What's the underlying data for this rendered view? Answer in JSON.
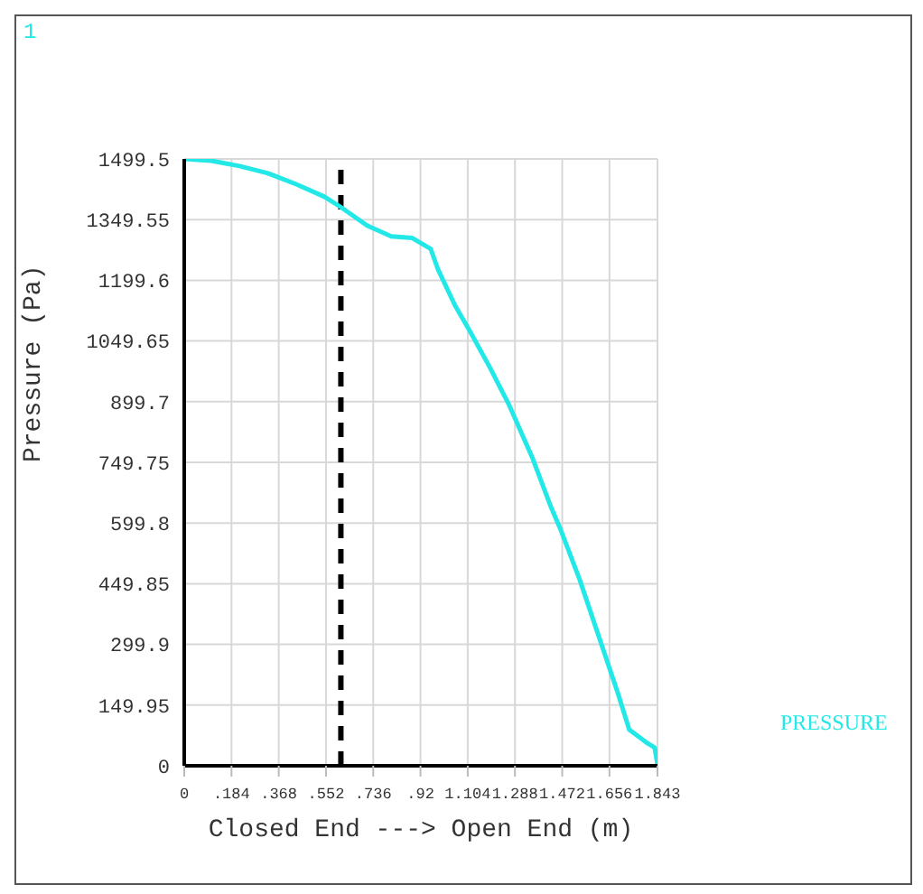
{
  "chart_data": {
    "type": "line",
    "xlabel": "Closed End ---> Open End (m)",
    "ylabel": "Pressure (Pa)",
    "annotations": [
      "1"
    ],
    "xlim": [
      0,
      1.843
    ],
    "xticks": [
      0,
      {
        "value": 0.184,
        "label": ".184"
      },
      {
        "value": 0.368,
        "label": ".368"
      },
      {
        "value": 0.552,
        "label": ".552"
      },
      {
        "value": 0.736,
        "label": ".736"
      },
      {
        "value": 0.92,
        "label": ".92"
      },
      1.104,
      1.288,
      1.472,
      1.656,
      1.843
    ],
    "ylim": [
      0,
      1499.5
    ],
    "yticks": [
      0,
      149.95,
      299.9,
      449.85,
      599.8,
      749.75,
      899.7,
      1049.65,
      1199.6,
      1349.55,
      1499.5
    ],
    "grid": true,
    "legend": "right",
    "marker": "none",
    "line_style": "solid",
    "ref_lines": [
      {
        "axis": "x",
        "value": 0.61,
        "color": "#000000",
        "line_style": "dashed"
      }
    ],
    "series": [
      {
        "name": "PRESSURE",
        "color": "#22e8e8",
        "x": [
          0,
          0.105,
          0.215,
          0.326,
          0.436,
          0.546,
          0.613,
          0.712,
          0.806,
          0.888,
          0.96,
          0.988,
          1.054,
          1.115,
          1.192,
          1.264,
          1.357,
          1.429,
          1.468,
          1.54,
          1.611,
          1.689,
          1.733,
          1.799,
          1.832,
          1.843
        ],
        "values": [
          1499.5,
          1495,
          1482,
          1464,
          1437,
          1406,
          1379,
          1335,
          1308,
          1304,
          1277,
          1227,
          1138,
          1071,
          982,
          893,
          759,
          638,
          580,
          460,
          326,
          179,
          89,
          58,
          45,
          4
        ]
      }
    ]
  }
}
